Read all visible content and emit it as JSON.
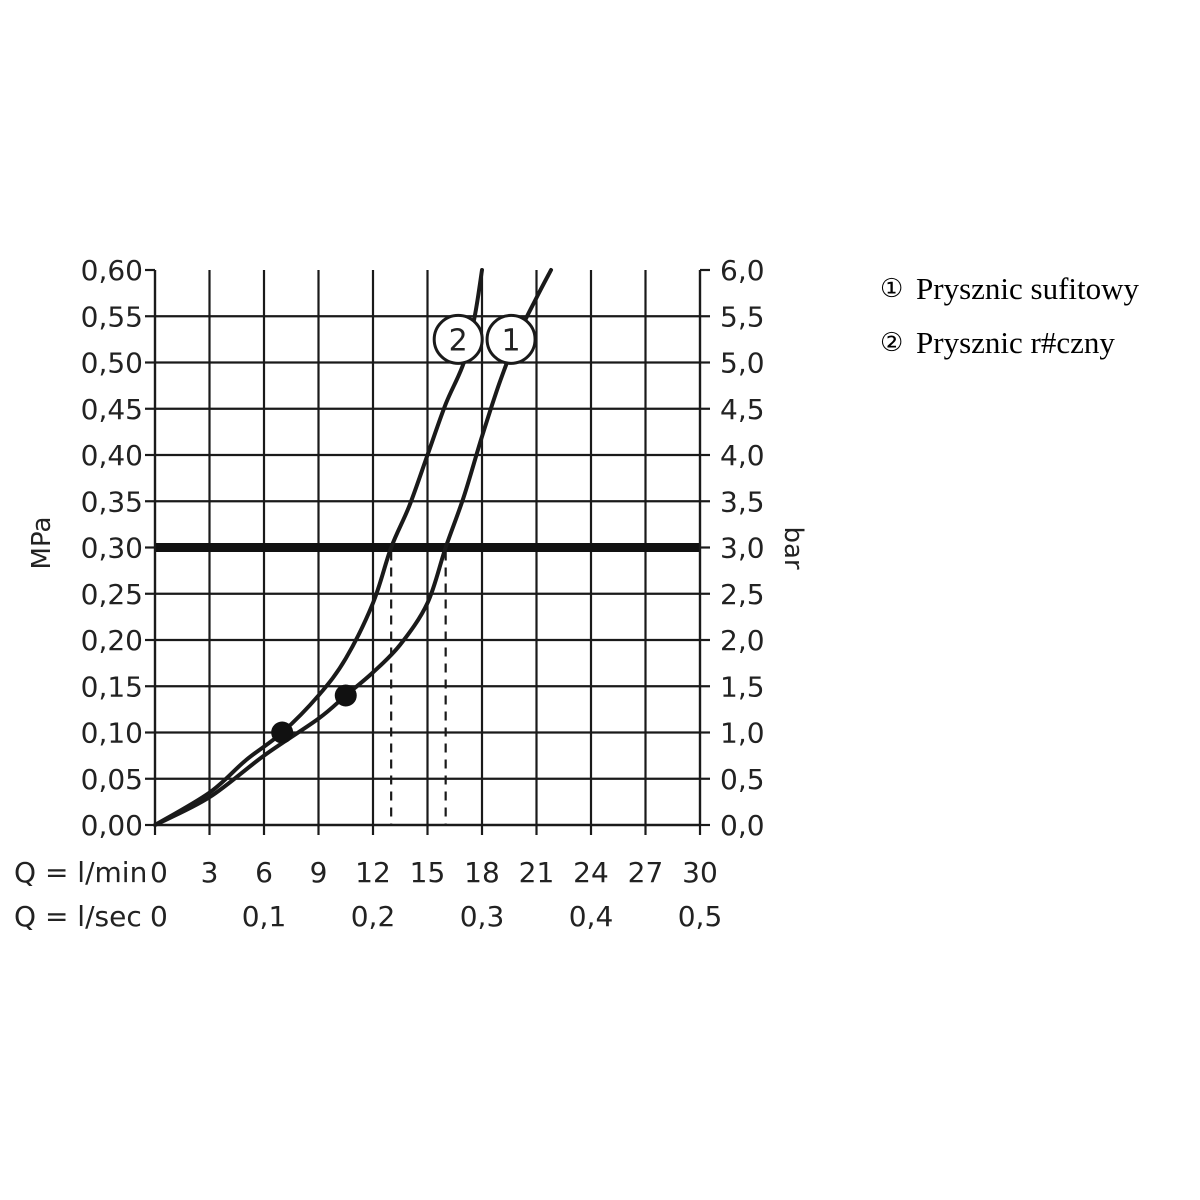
{
  "chart_data": {
    "type": "line",
    "title": "",
    "ylabel_left": "MPa",
    "ylabel_right": "bar",
    "xlabel_rows": [
      "Q = l/min",
      "Q = l/sec"
    ],
    "xlim": [
      0,
      30
    ],
    "ylim": [
      0,
      0.6
    ],
    "grid": true,
    "x_ticks_lmin": [
      "0",
      "3",
      "6",
      "9",
      "12",
      "15",
      "18",
      "21",
      "24",
      "27",
      "30"
    ],
    "x_ticks_lsec": [
      {
        "x": 0,
        "label": "0"
      },
      {
        "x": 6,
        "label": "0,1"
      },
      {
        "x": 12,
        "label": "0,2"
      },
      {
        "x": 18,
        "label": "0,3"
      },
      {
        "x": 24,
        "label": "0,4"
      },
      {
        "x": 30,
        "label": "0,5"
      }
    ],
    "y_ticks_mpa": [
      "0,00",
      "0,05",
      "0,10",
      "0,15",
      "0,20",
      "0,25",
      "0,30",
      "0,35",
      "0,40",
      "0,45",
      "0,50",
      "0,55",
      "0,60"
    ],
    "y_ticks_bar": [
      "0,0",
      "0,5",
      "1,0",
      "1,5",
      "2,0",
      "2,5",
      "3,0",
      "3,5",
      "4,0",
      "4,5",
      "5,0",
      "5,5",
      "6,0"
    ],
    "series": [
      {
        "marker_label": "1",
        "points": [
          [
            0,
            0
          ],
          [
            3,
            0.03
          ],
          [
            6,
            0.075
          ],
          [
            9,
            0.115
          ],
          [
            10.5,
            0.14
          ],
          [
            12,
            0.165
          ],
          [
            13.5,
            0.195
          ],
          [
            15,
            0.24
          ],
          [
            16,
            0.3
          ],
          [
            17,
            0.355
          ],
          [
            18,
            0.42
          ],
          [
            19,
            0.48
          ],
          [
            20,
            0.53
          ],
          [
            21,
            0.57
          ],
          [
            21.8,
            0.6
          ]
        ],
        "operating_point": [
          10.5,
          0.14
        ],
        "flow_at_0_3MPa": 16
      },
      {
        "marker_label": "2",
        "points": [
          [
            0,
            0
          ],
          [
            3,
            0.035
          ],
          [
            5,
            0.07
          ],
          [
            7,
            0.1
          ],
          [
            9,
            0.14
          ],
          [
            10.5,
            0.18
          ],
          [
            12,
            0.24
          ],
          [
            13,
            0.3
          ],
          [
            14,
            0.345
          ],
          [
            15,
            0.4
          ],
          [
            16,
            0.455
          ],
          [
            17,
            0.5
          ],
          [
            17.6,
            0.55
          ],
          [
            18,
            0.6
          ]
        ],
        "operating_point": [
          7,
          0.1
        ],
        "flow_at_0_3MPa": 13
      }
    ],
    "reference_line_y": 0.3
  },
  "legend": {
    "items": [
      {
        "marker": "①",
        "label": "Prysznic sufitowy"
      },
      {
        "marker": "②",
        "label": "Prysznic r#czny"
      }
    ]
  }
}
